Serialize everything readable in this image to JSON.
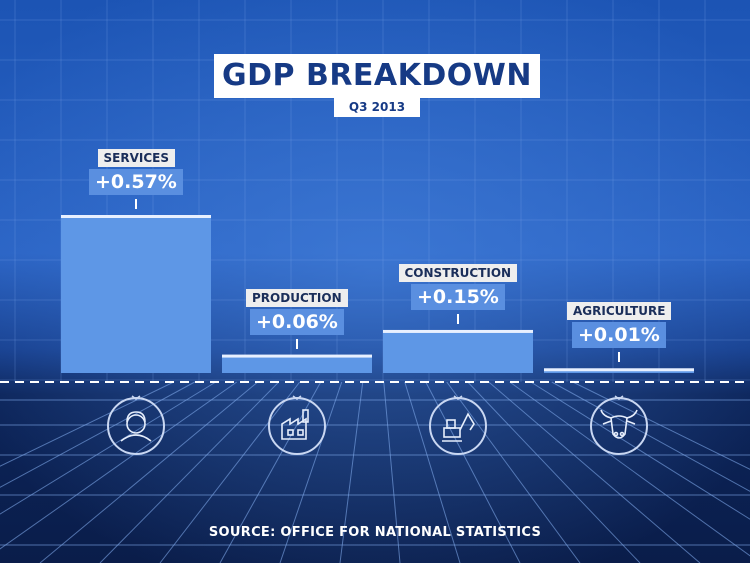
{
  "title": "GDP BREAKDOWN",
  "subtitle": "Q3 2013",
  "source": "SOURCE: OFFICE FOR NATIONAL STATISTICS",
  "colors": {
    "background": "#0d2a66",
    "bar": "#5e97e6",
    "label_bg": "#5a8fe0",
    "title_text": "#163a85"
  },
  "chart_data": {
    "type": "bar",
    "categories": [
      "SERVICES",
      "PRODUCTION",
      "CONSTRUCTION",
      "AGRICULTURE"
    ],
    "values": [
      0.57,
      0.06,
      0.15,
      0.01
    ],
    "value_labels": [
      "+0.57%",
      "+0.06%",
      "+0.15%",
      "+0.01%"
    ],
    "icons": [
      "worker-icon",
      "factory-icon",
      "excavator-icon",
      "cow-icon"
    ],
    "title": "GDP BREAKDOWN",
    "subtitle": "Q3 2013",
    "ylim": [
      0,
      0.57
    ],
    "grid": false,
    "legend": "none"
  }
}
